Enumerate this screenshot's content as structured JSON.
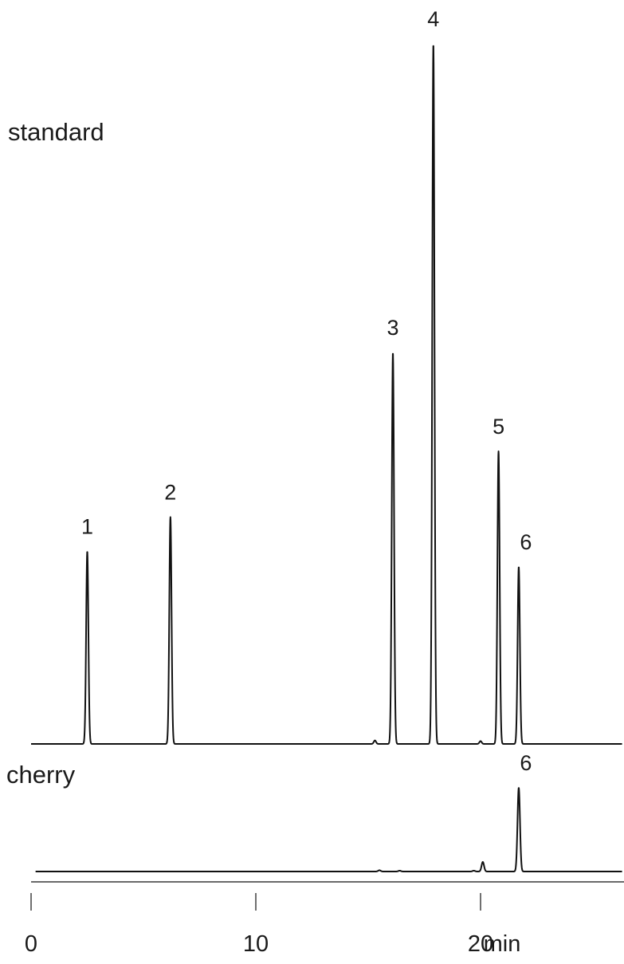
{
  "chart_data": [
    {
      "type": "line",
      "title": "standard",
      "xlabel": "min",
      "xlim": [
        0,
        26.3
      ],
      "x_unit": "min",
      "peaks": [
        {
          "label": "1",
          "x": 2.5,
          "height": 0.275
        },
        {
          "label": "2",
          "x": 6.2,
          "height": 0.324
        },
        {
          "label": "3",
          "x": 16.1,
          "height": 0.559
        },
        {
          "label": "4",
          "x": 17.9,
          "height": 1.0
        },
        {
          "label": "5",
          "x": 20.8,
          "height": 0.418
        },
        {
          "label": "6",
          "x": 21.7,
          "height": 0.253
        }
      ],
      "minor_peaks": [
        {
          "x": 15.3,
          "height": 0.005
        },
        {
          "x": 20.0,
          "height": 0.004
        }
      ]
    },
    {
      "type": "line",
      "title": "cherry",
      "xlabel": "min",
      "xlim": [
        0,
        26.3
      ],
      "x_unit": "min",
      "peaks": [
        {
          "label": "6",
          "x": 21.7,
          "height": 1.0
        }
      ],
      "minor_peaks": [
        {
          "x": 15.5,
          "height": 0.015
        },
        {
          "x": 16.4,
          "height": 0.01
        },
        {
          "x": 20.1,
          "height": 0.114
        },
        {
          "x": 19.7,
          "height": 0.01
        }
      ]
    }
  ],
  "x_axis": {
    "ticks": [
      {
        "value": 0,
        "label": "0"
      },
      {
        "value": 10,
        "label": "10"
      },
      {
        "value": 20,
        "label": "20"
      }
    ],
    "unit_label": "min"
  }
}
